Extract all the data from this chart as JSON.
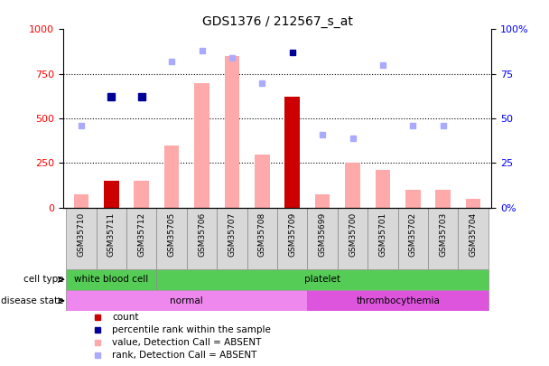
{
  "title": "GDS1376 / 212567_s_at",
  "samples": [
    "GSM35710",
    "GSM35711",
    "GSM35712",
    "GSM35705",
    "GSM35706",
    "GSM35707",
    "GSM35708",
    "GSM35709",
    "GSM35699",
    "GSM35700",
    "GSM35701",
    "GSM35702",
    "GSM35703",
    "GSM35704"
  ],
  "bar_values": [
    75,
    150,
    150,
    350,
    700,
    850,
    300,
    620,
    75,
    250,
    210,
    100,
    100,
    50
  ],
  "bar_colors": [
    "#ffaaaa",
    "#cc0000",
    "#ffaaaa",
    "#ffaaaa",
    "#ffaaaa",
    "#ffaaaa",
    "#ffaaaa",
    "#cc0000",
    "#ffaaaa",
    "#ffaaaa",
    "#ffaaaa",
    "#ffaaaa",
    "#ffaaaa",
    "#ffaaaa"
  ],
  "rank_dots_values": [
    null,
    62,
    62,
    null,
    null,
    null,
    null,
    null,
    null,
    null,
    null,
    null,
    null,
    null
  ],
  "rank_dots_color": "#000099",
  "scatter_right_values": [
    46,
    null,
    null,
    82,
    88,
    84,
    70,
    87,
    41,
    39,
    80,
    46,
    46,
    null
  ],
  "scatter_colors": [
    "#aaaaff",
    "#aaaaff",
    "#aaaaff",
    "#aaaaff",
    "#aaaaff",
    "#aaaaff",
    "#aaaaff",
    "#000099",
    "#aaaaff",
    "#aaaaff",
    "#aaaaff",
    "#aaaaff",
    "#aaaaff",
    "#aaaaff"
  ],
  "ylim_left": [
    0,
    1000
  ],
  "ylim_right": [
    0,
    100
  ],
  "yticks_left": [
    0,
    250,
    500,
    750,
    1000
  ],
  "yticks_right": [
    0,
    25,
    50,
    75,
    100
  ],
  "ytick_right_labels": [
    "0%",
    "25",
    "50",
    "75",
    "100%"
  ],
  "cell_type_groups": [
    {
      "label": "white blood cell",
      "start": 0,
      "end": 3,
      "color": "#55cc55"
    },
    {
      "label": "platelet",
      "start": 3,
      "end": 14,
      "color": "#55cc55"
    }
  ],
  "disease_state_groups": [
    {
      "label": "normal",
      "start": 0,
      "end": 8,
      "color": "#ee88ee"
    },
    {
      "label": "thrombocythemia",
      "start": 8,
      "end": 14,
      "color": "#dd55dd"
    }
  ],
  "legend_items": [
    {
      "label": "count",
      "color": "#cc0000"
    },
    {
      "label": "percentile rank within the sample",
      "color": "#000099"
    },
    {
      "label": "value, Detection Call = ABSENT",
      "color": "#ffaaaa"
    },
    {
      "label": "rank, Detection Call = ABSENT",
      "color": "#aaaaff"
    }
  ],
  "n_samples": 14,
  "bar_width": 0.5
}
